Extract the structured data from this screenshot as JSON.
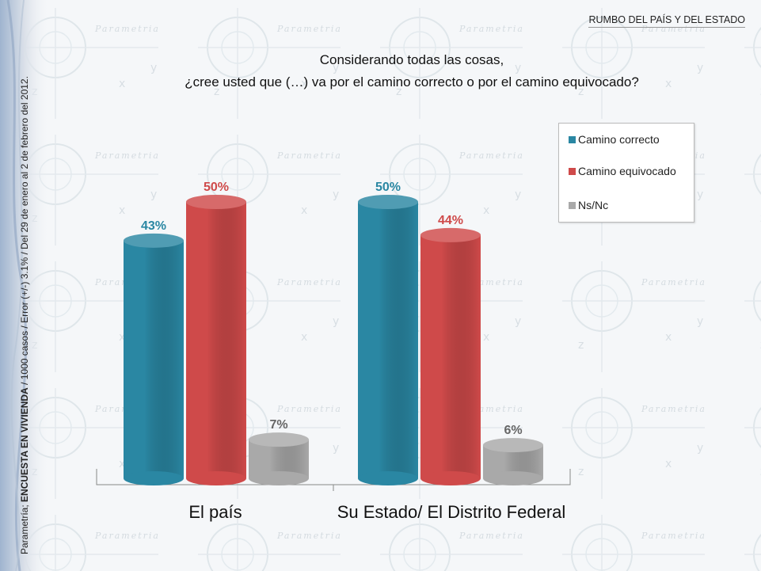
{
  "header": {
    "section_title": "RUMBO DEL PAÍS  Y DEL ESTADO"
  },
  "question": {
    "line1": "Considerando todas las cosas,",
    "line2": "¿cree usted que (…) va por el camino correcto o por el camino equivocado?"
  },
  "side_note": {
    "prefix": "Parametría; ",
    "bold": "ENCUESTA EN VIVIENDA",
    "rest": " / 1000 casos / Error (+/-) 3.1% / Del 29 de enero al 2 de febrero del 2012."
  },
  "watermark": "Parametria",
  "colors": {
    "correcto": "#2a87a3",
    "equivocado": "#cf4a4a",
    "nsnc": "#a9a9a9"
  },
  "chart_data": {
    "type": "bar",
    "categories": [
      "El país",
      "Su Estado/ El Distrito Federal"
    ],
    "series": [
      {
        "name": "Camino correcto",
        "values": [
          43,
          50
        ],
        "labels": [
          "43%",
          "50%"
        ]
      },
      {
        "name": "Camino equivocado",
        "values": [
          50,
          44
        ],
        "labels": [
          "50%",
          "44%"
        ]
      },
      {
        "name": "Ns/Nc",
        "values": [
          7,
          6
        ],
        "labels": [
          "7%",
          "6%"
        ]
      }
    ],
    "ylim": [
      0,
      50
    ],
    "legend_position": "top-right",
    "grid": false
  }
}
